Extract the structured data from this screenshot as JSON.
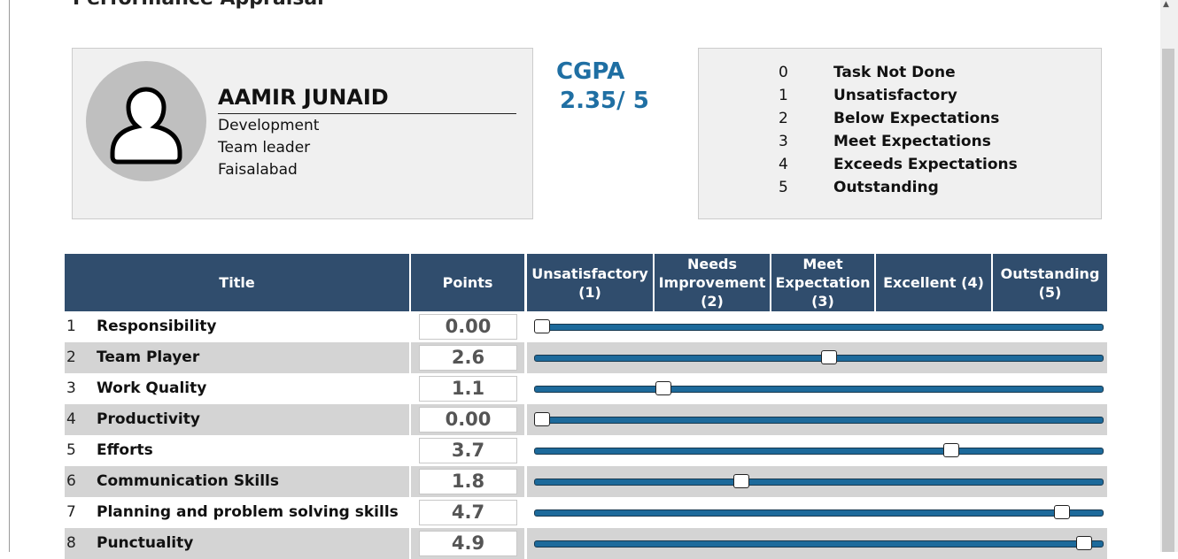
{
  "header": {
    "title": "Performance Appraisal"
  },
  "profile": {
    "name": "AAMIR JUNAID",
    "department": "Development",
    "designation": "Team leader",
    "city": "Faisalabad"
  },
  "cgpa": {
    "label": "CGPA",
    "value": "2.35/ 5"
  },
  "scale": [
    {
      "score": 0,
      "label": "Task Not Done"
    },
    {
      "score": 1,
      "label": "Unsatisfactory"
    },
    {
      "score": 2,
      "label": "Below Expectations"
    },
    {
      "score": 3,
      "label": "Meet Expectations"
    },
    {
      "score": 4,
      "label": "Exceeds Expectations"
    },
    {
      "score": 5,
      "label": "Outstanding"
    }
  ],
  "table": {
    "columns": [
      "Title",
      "Points",
      "Unsatisfactory\n(1)",
      "Needs\nImprovement\n(2)",
      "Meet\nExpectation\n(3)",
      "Excellent (4)",
      "Outstanding\n(5)"
    ],
    "rows": [
      {
        "no": 1,
        "title": "Responsibility",
        "points": "0.00"
      },
      {
        "no": 2,
        "title": "Team Player",
        "points": "2.6"
      },
      {
        "no": 3,
        "title": "Work Quality",
        "points": "1.1"
      },
      {
        "no": 4,
        "title": "Productivity",
        "points": "0.00"
      },
      {
        "no": 5,
        "title": "Efforts",
        "points": "3.7"
      },
      {
        "no": 6,
        "title": "Communication Skills",
        "points": "1.8"
      },
      {
        "no": 7,
        "title": "Planning and problem solving skills",
        "points": "4.7"
      },
      {
        "no": 8,
        "title": "Punctuality",
        "points": "4.9"
      }
    ]
  }
}
